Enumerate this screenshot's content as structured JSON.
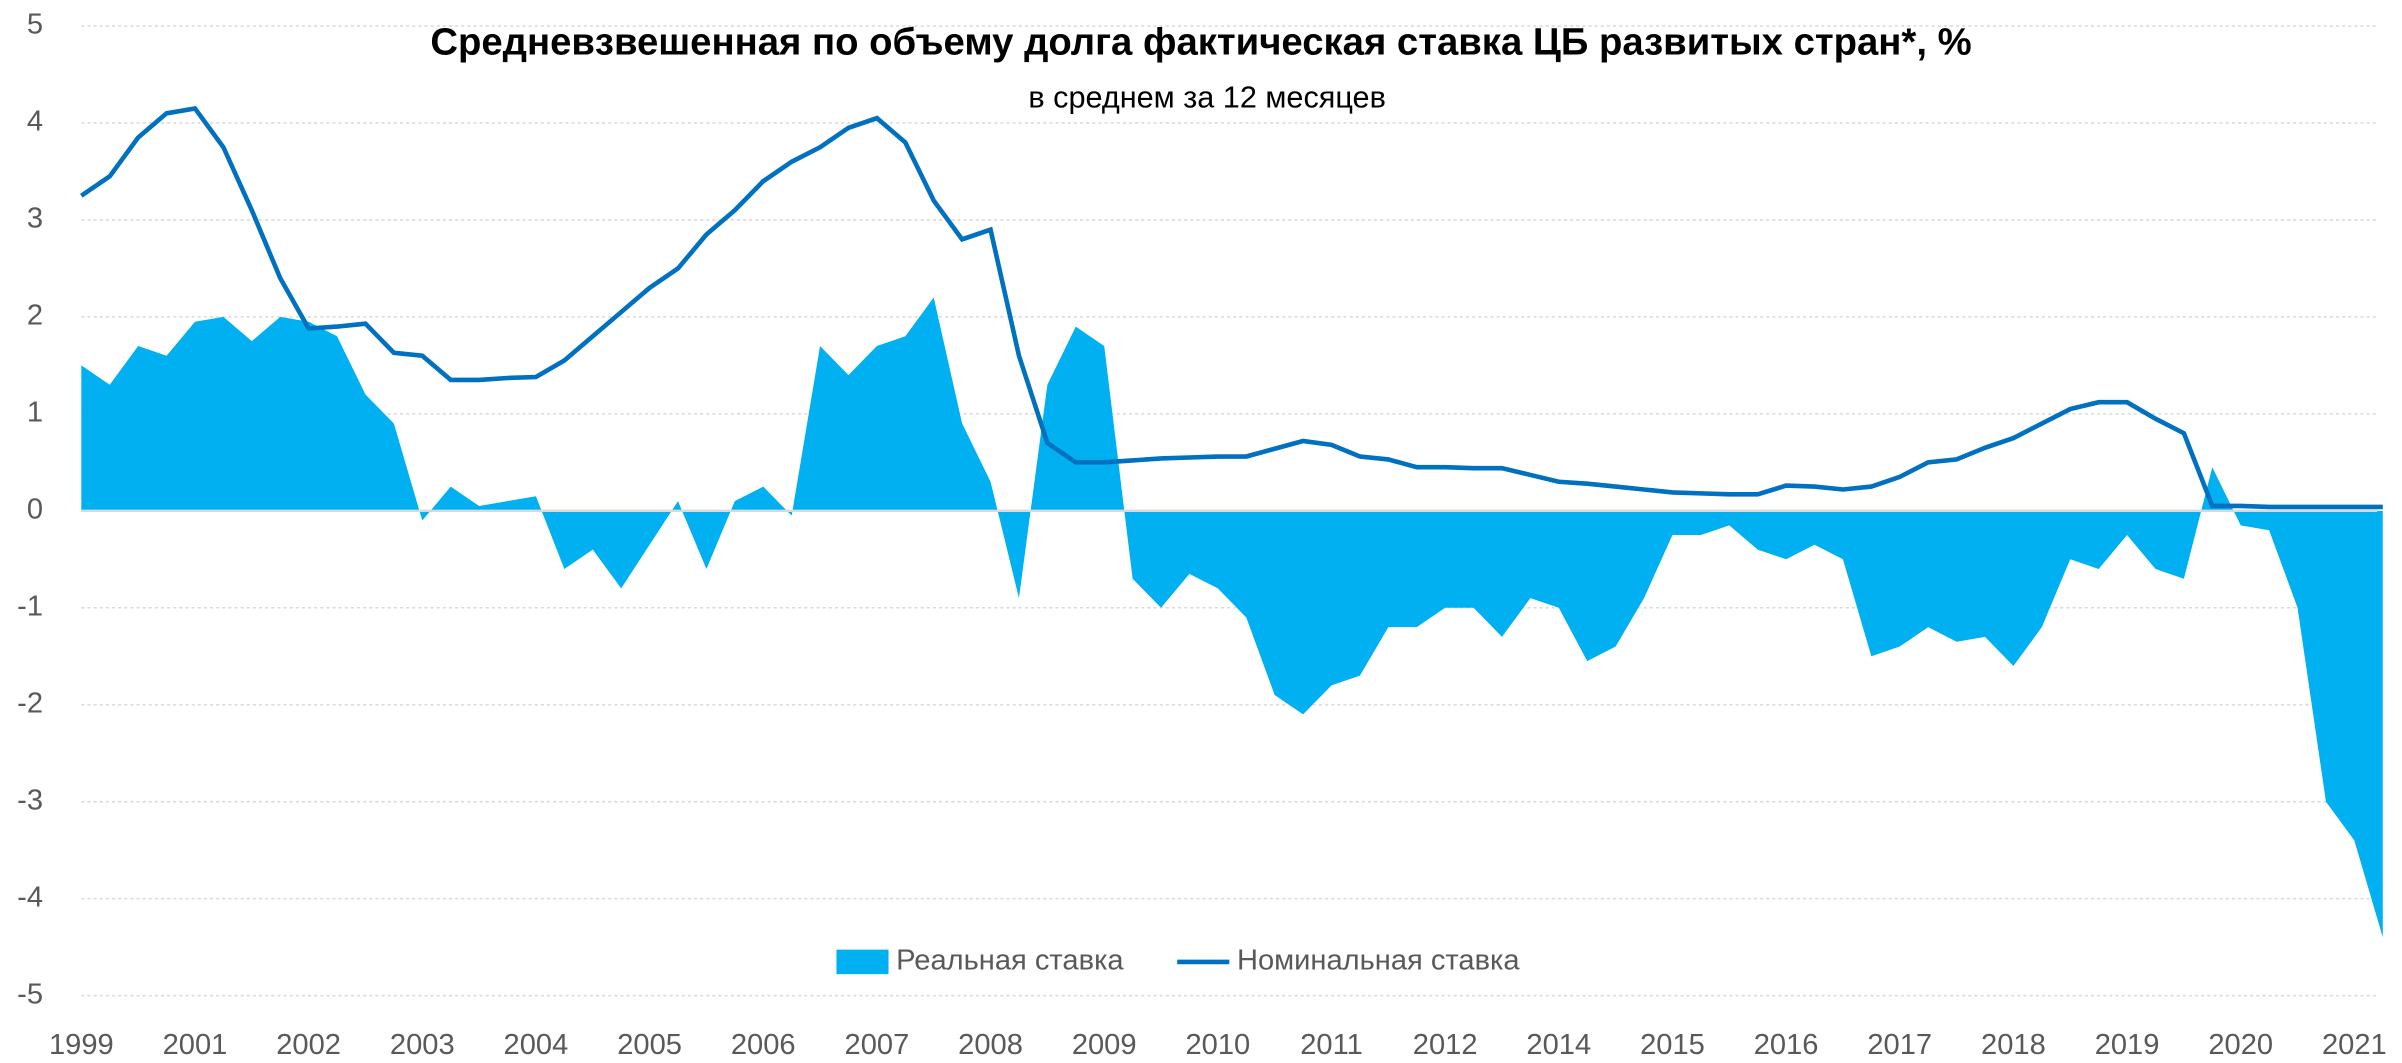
{
  "chart_data": {
    "type": "area-line",
    "title": "Средневзвешенная по объему долга фактическая ставка ЦБ развитых стран*, %",
    "subtitle": "в среднем за 12 месяцев",
    "x": [
      0,
      0.25,
      0.5,
      0.75,
      1,
      1.25,
      1.5,
      1.75,
      2,
      2.25,
      2.5,
      2.75,
      3,
      3.25,
      3.5,
      3.75,
      4,
      4.25,
      4.5,
      4.75,
      5,
      5.25,
      5.5,
      5.75,
      6,
      6.25,
      6.5,
      6.75,
      7,
      7.25,
      7.5,
      7.75,
      8,
      8.25,
      8.5,
      8.75,
      9,
      9.25,
      9.5,
      9.75,
      10,
      10.25,
      10.5,
      10.75,
      11,
      11.25,
      11.5,
      11.75,
      12,
      12.25,
      12.5,
      12.75,
      13,
      13.25,
      13.5,
      13.75,
      14,
      14.25,
      14.5,
      14.75,
      15,
      15.25,
      15.5,
      15.75,
      16,
      16.25,
      16.5,
      16.75,
      17,
      17.25,
      17.5,
      17.75,
      18,
      18.25,
      18.5,
      18.75,
      19,
      19.25,
      19.5,
      19.75,
      20,
      20.25
    ],
    "series": [
      {
        "name": "Реальная ставка",
        "type": "area",
        "color": "#00b0f0",
        "values": [
          1.5,
          1.3,
          1.7,
          1.6,
          1.95,
          2.0,
          1.75,
          2.0,
          1.95,
          1.8,
          1.2,
          0.9,
          -0.1,
          0.25,
          0.05,
          0.1,
          0.15,
          -0.6,
          -0.4,
          -0.8,
          -0.35,
          0.1,
          -0.6,
          0.1,
          0.25,
          -0.05,
          1.7,
          1.4,
          1.7,
          1.8,
          2.2,
          0.9,
          0.3,
          -0.9,
          1.3,
          1.9,
          1.7,
          -0.7,
          -1.0,
          -0.65,
          -0.8,
          -1.1,
          -1.9,
          -2.1,
          -1.8,
          -1.7,
          -1.2,
          -1.2,
          -1.0,
          -1.0,
          -1.3,
          -0.9,
          -1.0,
          -1.55,
          -1.4,
          -0.9,
          -0.25,
          -0.25,
          -0.15,
          -0.4,
          -0.5,
          -0.35,
          -0.5,
          -1.5,
          -1.4,
          -1.2,
          -1.35,
          -1.3,
          -1.6,
          -1.2,
          -0.5,
          -0.6,
          -0.25,
          -0.6,
          -0.7,
          0.45,
          -0.15,
          -0.2,
          -1.0,
          -3.0,
          -3.4,
          -4.4
        ]
      },
      {
        "name": "Номинальная ставка",
        "type": "line",
        "color": "#0070c0",
        "values": [
          3.25,
          3.45,
          3.85,
          4.1,
          4.15,
          3.75,
          3.1,
          2.4,
          1.88,
          1.9,
          1.93,
          1.63,
          1.6,
          1.35,
          1.35,
          1.37,
          1.38,
          1.55,
          1.8,
          2.05,
          2.3,
          2.5,
          2.85,
          3.1,
          3.4,
          3.6,
          3.75,
          3.95,
          4.05,
          3.8,
          3.2,
          2.8,
          2.9,
          1.6,
          0.7,
          0.5,
          0.5,
          0.52,
          0.54,
          0.55,
          0.56,
          0.56,
          0.64,
          0.72,
          0.68,
          0.56,
          0.53,
          0.45,
          0.45,
          0.44,
          0.44,
          0.37,
          0.3,
          0.28,
          0.25,
          0.22,
          0.19,
          0.18,
          0.17,
          0.17,
          0.26,
          0.25,
          0.22,
          0.25,
          0.35,
          0.5,
          0.53,
          0.65,
          0.75,
          0.9,
          1.05,
          1.12,
          1.12,
          0.95,
          0.8,
          0.05,
          0.05,
          0.04,
          0.04,
          0.04,
          0.04,
          0.04
        ]
      }
    ],
    "xlim": [
      0,
      20
    ],
    "xticks": [
      {
        "value": 0,
        "label": "1999"
      },
      {
        "value": 1,
        "label": "2001"
      },
      {
        "value": 2,
        "label": "2002"
      },
      {
        "value": 3,
        "label": "2003"
      },
      {
        "value": 4,
        "label": "2004"
      },
      {
        "value": 5,
        "label": "2005"
      },
      {
        "value": 6,
        "label": "2006"
      },
      {
        "value": 7,
        "label": "2007"
      },
      {
        "value": 8,
        "label": "2008"
      },
      {
        "value": 9,
        "label": "2009"
      },
      {
        "value": 10,
        "label": "2010"
      },
      {
        "value": 11,
        "label": "2011"
      },
      {
        "value": 12,
        "label": "2012"
      },
      {
        "value": 13,
        "label": "2014"
      },
      {
        "value": 14,
        "label": "2015"
      },
      {
        "value": 15,
        "label": "2016"
      },
      {
        "value": 16,
        "label": "2017"
      },
      {
        "value": 17,
        "label": "2018"
      },
      {
        "value": 18,
        "label": "2019"
      },
      {
        "value": 19,
        "label": "2020"
      },
      {
        "value": 20,
        "label": "2021"
      }
    ],
    "ylim": [
      -5,
      5
    ],
    "yticks": [
      5,
      4,
      3,
      2,
      1,
      0,
      -1,
      -2,
      -3,
      -4,
      -5
    ],
    "grid": true,
    "legend": "bottom"
  }
}
